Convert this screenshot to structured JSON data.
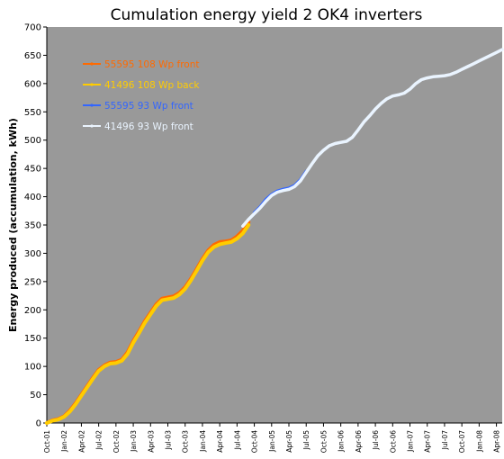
{
  "chart_data": {
    "type": "line",
    "title": "Cumulation energy yield 2 OK4 inverters",
    "xlabel": "",
    "ylabel": "Energy produced (accumulation, kWh)",
    "ylim": [
      0,
      700
    ],
    "yticks": [
      0,
      50,
      100,
      150,
      200,
      250,
      300,
      350,
      400,
      450,
      500,
      550,
      600,
      650,
      700
    ],
    "xlim": [
      0,
      79
    ],
    "x_tick_labels": [
      "Oct-01",
      "Jan-02",
      "Apr-02",
      "Jul-02",
      "Oct-02",
      "Jan-03",
      "Apr-03",
      "Jul-03",
      "Oct-03",
      "Jan-04",
      "Apr-04",
      "Jul-04",
      "Oct-04",
      "Jan-05",
      "Apr-05",
      "Jul-05",
      "Oct-05",
      "Jan-06",
      "Apr-06",
      "Jul-06",
      "Oct-06",
      "Jan-07",
      "Apr-07",
      "Jul-07",
      "Oct-07",
      "Jan-08",
      "Apr-08"
    ],
    "grid": false,
    "legend_position": "top-left",
    "background_color": "#999999",
    "series": [
      {
        "name": "55595 108 Wp front",
        "color": "#ff6a00",
        "x": [
          0,
          1,
          2,
          3,
          4,
          5,
          6,
          7,
          8,
          9,
          10,
          11,
          12,
          13,
          14,
          15,
          16,
          17,
          18,
          19,
          20,
          21,
          22,
          23,
          24,
          25,
          26,
          27,
          28,
          29,
          30,
          31,
          32,
          33,
          34,
          35,
          36,
          37,
          38,
          39,
          40,
          41,
          42,
          43
        ],
        "y": [
          0,
          5,
          7,
          12,
          22,
          35,
          50,
          65,
          80,
          94,
          102,
          107,
          108,
          112,
          125,
          145,
          162,
          180,
          195,
          210,
          220,
          222,
          224,
          230,
          240,
          255,
          272,
          290,
          305,
          315,
          320,
          321,
          323,
          330,
          340,
          355,
          null,
          null,
          null,
          null,
          null,
          null,
          null,
          null
        ]
      },
      {
        "name": "41496 108 Wp back",
        "color": "#ffcc00",
        "x": [
          0,
          1,
          2,
          3,
          4,
          5,
          6,
          7,
          8,
          9,
          10,
          11,
          12,
          13,
          14,
          15,
          16,
          17,
          18,
          19,
          20,
          21,
          22,
          23,
          24,
          25,
          26,
          27,
          28,
          29,
          30,
          31,
          32,
          33,
          34,
          35
        ],
        "y": [
          0,
          4,
          6,
          11,
          20,
          33,
          48,
          63,
          78,
          92,
          100,
          105,
          106,
          110,
          122,
          142,
          159,
          177,
          192,
          207,
          217,
          219,
          221,
          227,
          237,
          252,
          269,
          287,
          302,
          311,
          316,
          318,
          320,
          326,
          335,
          350
        ]
      },
      {
        "name": "55595 93 Wp front",
        "color": "#3366ff",
        "x": [
          36,
          37,
          38,
          39,
          40,
          41,
          42,
          43,
          44,
          45
        ],
        "y": [
          372,
          382,
          395,
          404,
          410,
          413,
          415,
          420,
          430,
          445
        ]
      },
      {
        "name": "41496 93 Wp front",
        "color": "#eaf4ff",
        "x": [
          34,
          35,
          36,
          37,
          38,
          39,
          40,
          41,
          42,
          43,
          44,
          45,
          46,
          47,
          48,
          49,
          50,
          51,
          52,
          53,
          54,
          55,
          56,
          57,
          58,
          59,
          60,
          61,
          62,
          63,
          64,
          65,
          66,
          67,
          68,
          69,
          70,
          71,
          72,
          73,
          74,
          75,
          76,
          77,
          78,
          79
        ],
        "y": [
          348,
          360,
          370,
          380,
          392,
          402,
          408,
          411,
          413,
          418,
          428,
          443,
          458,
          472,
          482,
          490,
          494,
          496,
          498,
          505,
          518,
          532,
          543,
          555,
          565,
          573,
          578,
          580,
          583,
          590,
          600,
          607,
          610,
          612,
          613,
          614,
          616,
          620,
          625,
          630,
          635,
          640,
          645,
          650,
          655,
          660
        ]
      }
    ]
  }
}
